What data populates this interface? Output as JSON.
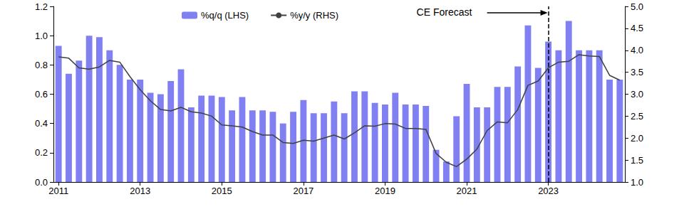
{
  "chart_data": {
    "type": "bar",
    "categories": [
      "2011",
      null,
      null,
      null,
      null,
      null,
      null,
      null,
      "2013",
      null,
      null,
      null,
      null,
      null,
      null,
      null,
      "2015",
      null,
      null,
      null,
      null,
      null,
      null,
      null,
      "2017",
      null,
      null,
      null,
      null,
      null,
      null,
      null,
      "2019",
      null,
      null,
      null,
      null,
      null,
      null,
      null,
      "2021",
      null,
      null,
      null,
      null,
      null,
      null,
      null,
      "2023",
      null,
      null,
      null,
      null,
      null,
      null,
      null
    ],
    "series": [
      {
        "name": "%q/q (LHS)",
        "type": "bar",
        "color": "#8080f2",
        "values": [
          0.93,
          0.74,
          0.83,
          1.0,
          0.99,
          0.9,
          0.8,
          0.7,
          0.7,
          0.61,
          0.6,
          0.69,
          0.77,
          0.51,
          0.59,
          0.59,
          0.58,
          0.49,
          0.58,
          0.49,
          0.49,
          0.48,
          0.4,
          0.48,
          0.56,
          0.47,
          0.47,
          0.55,
          0.47,
          0.62,
          0.62,
          0.54,
          0.53,
          0.61,
          0.53,
          0.53,
          0.52,
          0.22,
          0.14,
          0.45,
          0.67,
          0.51,
          0.51,
          0.65,
          0.65,
          0.79,
          1.07,
          0.78,
          0.96,
          0.9,
          1.1,
          0.9,
          0.9,
          0.9,
          0.7,
          0.7
        ]
      },
      {
        "name": "%y/y (RHS)",
        "type": "line",
        "axis": "y2",
        "color": "#404040",
        "values": [
          3.85,
          3.82,
          3.6,
          3.57,
          3.62,
          3.77,
          3.73,
          3.4,
          3.1,
          2.85,
          2.65,
          2.62,
          2.7,
          2.6,
          2.57,
          2.5,
          2.3,
          2.28,
          2.25,
          2.15,
          2.07,
          2.07,
          1.9,
          1.88,
          1.95,
          1.93,
          2.0,
          2.07,
          1.98,
          2.12,
          2.28,
          2.27,
          2.33,
          2.32,
          2.22,
          2.22,
          2.2,
          1.65,
          1.45,
          1.35,
          1.52,
          1.75,
          2.17,
          2.37,
          2.35,
          2.65,
          3.2,
          3.3,
          3.6,
          3.73,
          3.75,
          3.9,
          3.87,
          3.86,
          3.43,
          3.32
        ]
      }
    ],
    "ylim": [
      0,
      1.2
    ],
    "yticks": [
      {
        "value": 0,
        "label": "0.0"
      },
      {
        "value": 0.2,
        "label": "0.2"
      },
      {
        "value": 0.4,
        "label": "0.4"
      },
      {
        "value": 0.6,
        "label": "0.6"
      },
      {
        "value": 0.8,
        "label": "0.8"
      },
      {
        "value": 1,
        "label": "1.0"
      },
      {
        "value": 1.2,
        "label": "1.2"
      }
    ],
    "y2lim": [
      1,
      5
    ],
    "y2ticks": [
      {
        "value": 1,
        "label": "1.0"
      },
      {
        "value": 1.5,
        "label": "1.5"
      },
      {
        "value": 2,
        "label": "2.0"
      },
      {
        "value": 2.5,
        "label": "2.5"
      },
      {
        "value": 3,
        "label": "3.0"
      },
      {
        "value": 3.5,
        "label": "3.5"
      },
      {
        "value": 4,
        "label": "4.0"
      },
      {
        "value": 4.5,
        "label": "4.5"
      },
      {
        "value": 5,
        "label": "5.0"
      }
    ],
    "annotations": [
      {
        "text": "CE Forecast",
        "x": "2023"
      }
    ],
    "legend": "top",
    "grid": false
  }
}
